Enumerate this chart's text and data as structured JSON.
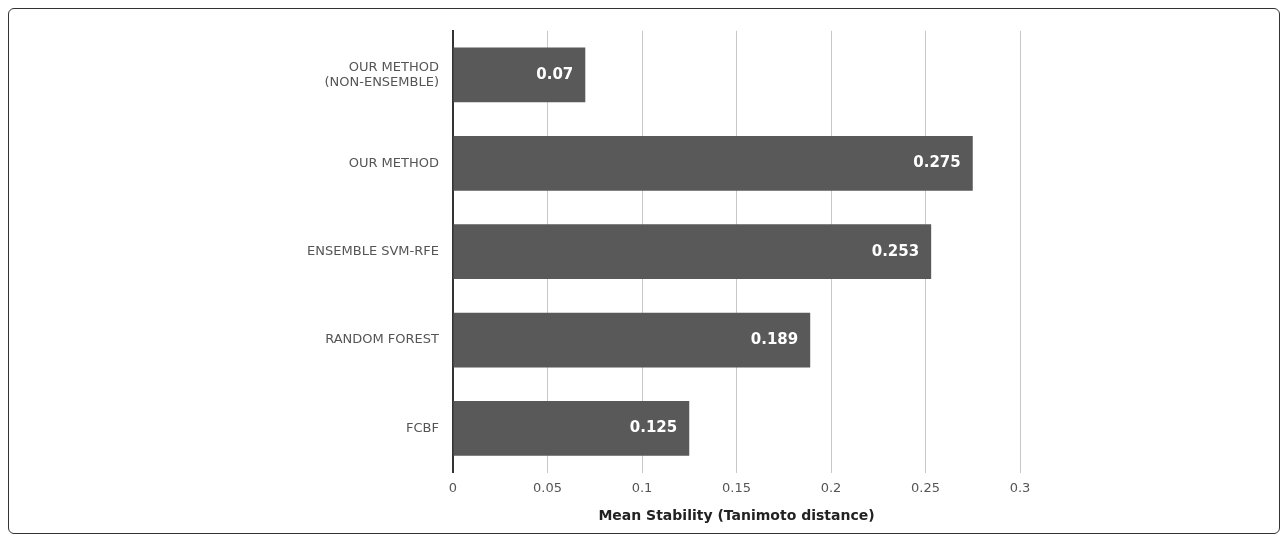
{
  "chart_data": {
    "type": "bar",
    "orientation": "horizontal",
    "xlabel": "Mean Stability (Tanimoto distance)",
    "categories": [
      "OUR METHOD\n(NON-ENSEMBLE)",
      "OUR METHOD",
      "ENSEMBLE SVM-RFE",
      "RANDOM FOREST",
      "FCBF"
    ],
    "values": [
      0.07,
      0.275,
      0.253,
      0.189,
      0.125
    ],
    "color": "#595959",
    "xlim": [
      0,
      0.3
    ],
    "xticks": [
      0,
      0.05,
      0.1,
      0.15,
      0.2,
      0.25,
      0.3
    ],
    "grid": "x",
    "data_labels": true,
    "legend": false
  }
}
